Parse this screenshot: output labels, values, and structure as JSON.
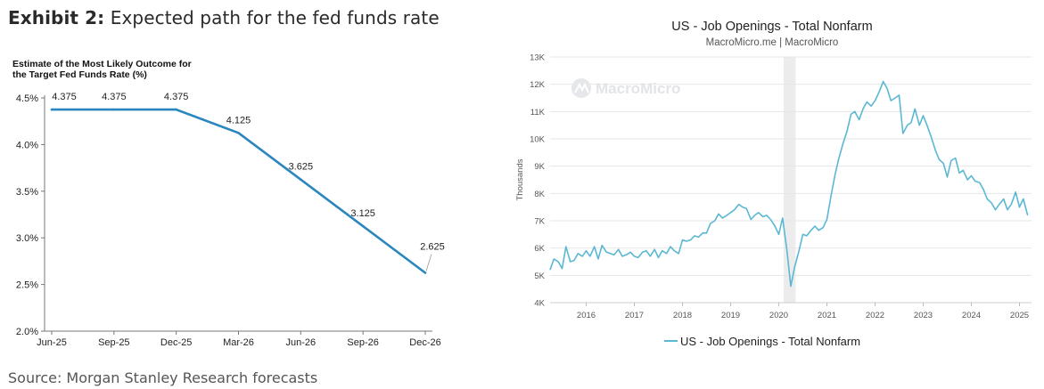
{
  "exhibit": {
    "label": "Exhibit 2:",
    "text": "Expected path for the fed funds rate"
  },
  "source": "Source: Morgan Stanley Research forecasts",
  "chart_data": [
    {
      "type": "line",
      "title": "Estimate of the Most Likely Outcome for the Target Fed Funds Rate (%)",
      "title_lines": [
        "Estimate of the Most Likely Outcome for",
        "the Target Fed Funds Rate (%)"
      ],
      "categories": [
        "Jun-25",
        "Sep-25",
        "Dec-25",
        "Mar-26",
        "Jun-26",
        "Sep-26",
        "Dec-26"
      ],
      "values": [
        4.375,
        4.375,
        4.375,
        4.125,
        3.625,
        3.125,
        2.625
      ],
      "data_labels": [
        "4.375",
        "4.375",
        "4.375",
        "4.125",
        "3.625",
        "3.125",
        "2.625"
      ],
      "yticks": [
        "4.5%",
        "4.0%",
        "3.5%",
        "3.0%",
        "2.5%",
        "2.0%"
      ],
      "ytick_values": [
        4.5,
        4.0,
        3.5,
        3.0,
        2.5,
        2.0
      ],
      "ylim": [
        2.0,
        4.5
      ],
      "color": "#2a86bf",
      "grid": false
    },
    {
      "type": "line",
      "title": "US - Job Openings - Total Nonfarm",
      "subtitle": "MacroMicro.me | MacroMicro",
      "watermark": "MacroMicro",
      "ylabel": "Thousands",
      "yticks": [
        "13K",
        "12K",
        "11K",
        "10K",
        "9K",
        "8K",
        "7K",
        "6K",
        "5K",
        "4K"
      ],
      "ytick_values": [
        13000,
        12000,
        11000,
        10000,
        9000,
        8000,
        7000,
        6000,
        5000,
        4000
      ],
      "xticks": [
        "2016",
        "2017",
        "2018",
        "2019",
        "2020",
        "2021",
        "2022",
        "2023",
        "2024",
        "2025"
      ],
      "xtick_values": [
        2016,
        2017,
        2018,
        2019,
        2020,
        2021,
        2022,
        2023,
        2024,
        2025
      ],
      "xlim": [
        2015.25,
        2025.25
      ],
      "ylim": [
        4000,
        13000
      ],
      "grid": true,
      "legend": "bottom-center",
      "color": "#5bb8d4",
      "recession_band": [
        2020.1,
        2020.35
      ],
      "series": [
        {
          "name": "US - Job Openings - Total Nonfarm",
          "x": [
            2015.25,
            2015.33,
            2015.42,
            2015.5,
            2015.58,
            2015.67,
            2015.75,
            2015.83,
            2015.92,
            2016.0,
            2016.08,
            2016.17,
            2016.25,
            2016.33,
            2016.42,
            2016.5,
            2016.58,
            2016.67,
            2016.75,
            2016.83,
            2016.92,
            2017.0,
            2017.08,
            2017.17,
            2017.25,
            2017.33,
            2017.42,
            2017.5,
            2017.58,
            2017.67,
            2017.75,
            2017.83,
            2017.92,
            2018.0,
            2018.08,
            2018.17,
            2018.25,
            2018.33,
            2018.42,
            2018.5,
            2018.58,
            2018.67,
            2018.75,
            2018.83,
            2018.92,
            2019.0,
            2019.08,
            2019.17,
            2019.25,
            2019.33,
            2019.42,
            2019.5,
            2019.58,
            2019.67,
            2019.75,
            2019.83,
            2019.92,
            2020.0,
            2020.08,
            2020.17,
            2020.25,
            2020.33,
            2020.42,
            2020.5,
            2020.58,
            2020.67,
            2020.75,
            2020.83,
            2020.92,
            2021.0,
            2021.08,
            2021.17,
            2021.25,
            2021.33,
            2021.42,
            2021.5,
            2021.58,
            2021.67,
            2021.75,
            2021.83,
            2021.92,
            2022.0,
            2022.08,
            2022.17,
            2022.25,
            2022.33,
            2022.42,
            2022.5,
            2022.58,
            2022.67,
            2022.75,
            2022.83,
            2022.92,
            2023.0,
            2023.08,
            2023.17,
            2023.25,
            2023.33,
            2023.42,
            2023.5,
            2023.58,
            2023.67,
            2023.75,
            2023.83,
            2023.92,
            2024.0,
            2024.08,
            2024.17,
            2024.25,
            2024.33,
            2024.42,
            2024.5,
            2024.58,
            2024.67,
            2024.75,
            2024.83,
            2024.92,
            2025.0,
            2025.08,
            2025.17
          ],
          "values": [
            5200,
            5600,
            5500,
            5250,
            6050,
            5500,
            5550,
            5800,
            5700,
            5900,
            5700,
            6050,
            5600,
            6100,
            5850,
            5800,
            5750,
            5950,
            5700,
            5750,
            5850,
            5700,
            5650,
            5850,
            5900,
            5700,
            5950,
            5650,
            5900,
            5800,
            6050,
            5900,
            5800,
            6300,
            6250,
            6300,
            6450,
            6400,
            6550,
            6550,
            6900,
            7000,
            7250,
            7100,
            7200,
            7300,
            7400,
            7600,
            7500,
            7450,
            7050,
            7200,
            7300,
            7150,
            7200,
            7050,
            6800,
            6500,
            7100,
            5900,
            4600,
            5300,
            5900,
            6500,
            6450,
            6650,
            6800,
            6650,
            6750,
            7050,
            7850,
            8700,
            9300,
            9800,
            10300,
            10900,
            11000,
            10700,
            11100,
            11350,
            11200,
            11400,
            11700,
            12100,
            11850,
            11400,
            11500,
            11600,
            10200,
            10500,
            10600,
            11100,
            10500,
            10850,
            10500,
            10050,
            9600,
            9250,
            9100,
            8600,
            9200,
            9300,
            8750,
            8850,
            8500,
            8650,
            8450,
            8400,
            8150,
            7800,
            7650,
            7400,
            7600,
            7800,
            7400,
            7600,
            8050,
            7500,
            7800,
            7200
          ]
        }
      ]
    }
  ]
}
